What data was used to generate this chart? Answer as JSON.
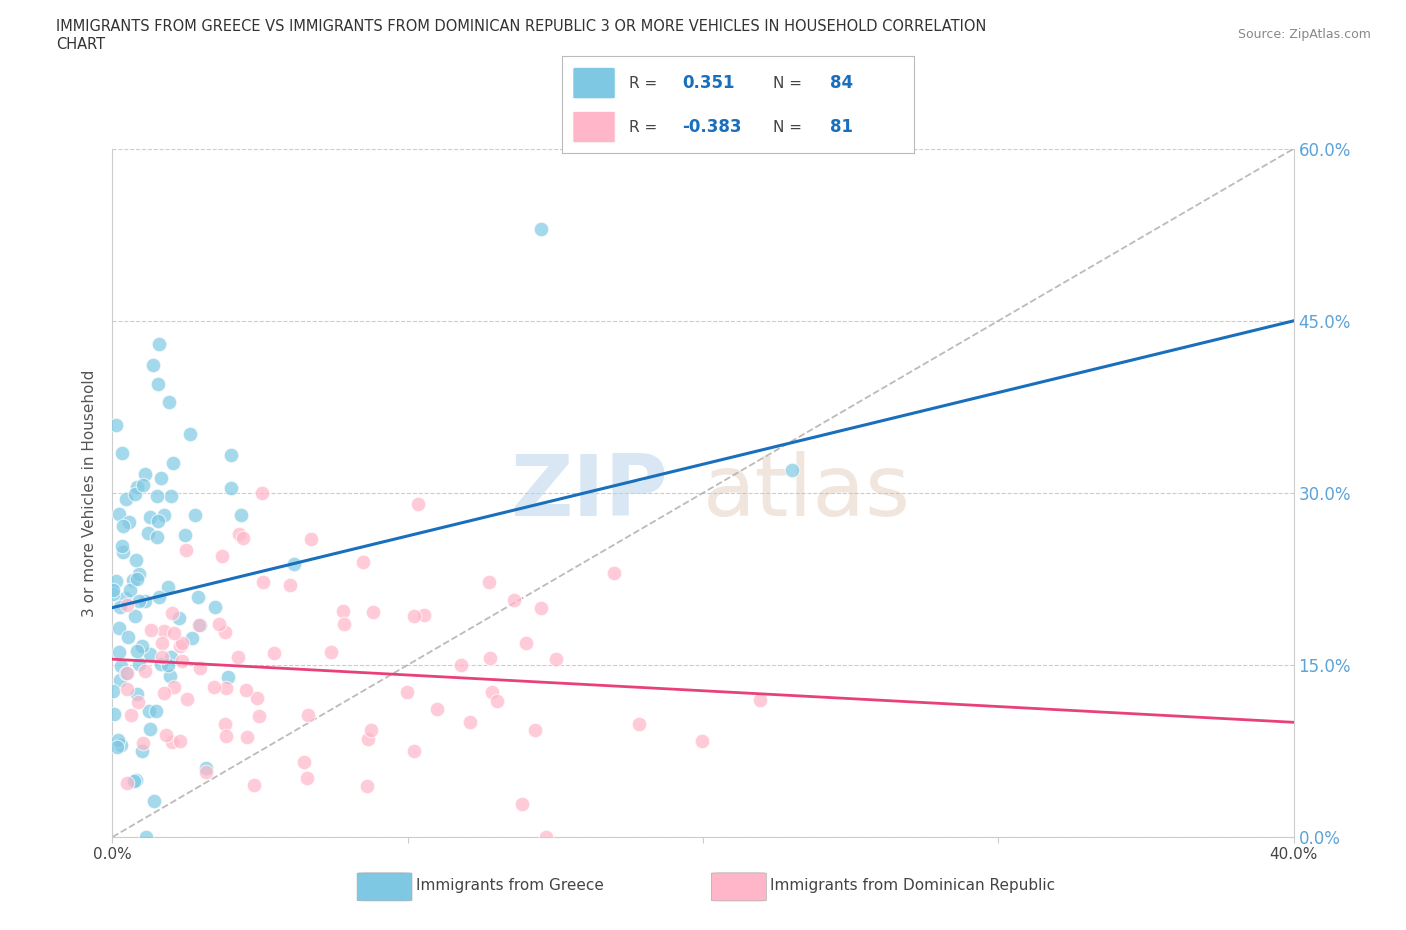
{
  "title_line1": "IMMIGRANTS FROM GREECE VS IMMIGRANTS FROM DOMINICAN REPUBLIC 3 OR MORE VEHICLES IN HOUSEHOLD CORRELATION",
  "title_line2": "CHART",
  "source_text": "Source: ZipAtlas.com",
  "ylabel": "3 or more Vehicles in Household",
  "xlim": [
    0.0,
    40.0
  ],
  "ylim": [
    0.0,
    60.0
  ],
  "xticks": [
    0.0,
    10.0,
    20.0,
    30.0,
    40.0
  ],
  "yticks": [
    0.0,
    15.0,
    30.0,
    45.0,
    60.0
  ],
  "xticklabels": [
    "0.0%",
    "",
    "",
    "",
    "40.0%"
  ],
  "yticklabels_right": [
    "0.0%",
    "15.0%",
    "30.0%",
    "45.0%",
    "60.0%"
  ],
  "greece_color": "#7ec8e3",
  "dr_color": "#ffb6c8",
  "greece_trend_color": "#1a6fbd",
  "dr_trend_color": "#e8417a",
  "greece_R": 0.351,
  "greece_N": 84,
  "dr_R": -0.383,
  "dr_N": 81,
  "legend_label_greece": "Immigrants from Greece",
  "legend_label_dr": "Immigrants from Dominican Republic",
  "background_color": "#ffffff",
  "watermark_zip": "ZIP",
  "watermark_atlas": "atlas",
  "greece_trend_x0": 0.0,
  "greece_trend_y0": 20.0,
  "greece_trend_x1": 40.0,
  "greece_trend_y1": 45.0,
  "dr_trend_x0": 0.0,
  "dr_trend_y0": 15.5,
  "dr_trend_x1": 40.0,
  "dr_trend_y1": 10.0,
  "diag_x0": 0.0,
  "diag_y0": 0.0,
  "diag_x1": 40.0,
  "diag_y1": 60.0
}
